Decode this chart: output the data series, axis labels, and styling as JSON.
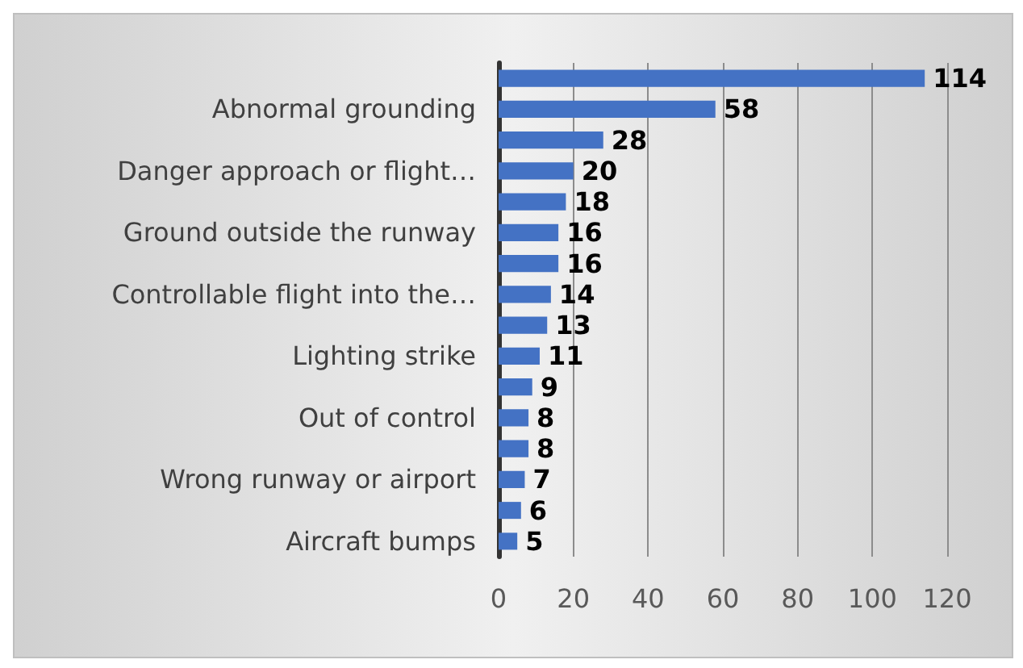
{
  "chart_data": {
    "type": "bar",
    "orientation": "horizontal",
    "categories": [
      null,
      "Abnormal grounding",
      null,
      "Danger approach or flight…",
      null,
      "Ground outside the runway",
      null,
      "Controllable flight into the…",
      null,
      "Lighting strike",
      null,
      "Out of control",
      null,
      "Wrong runway or airport",
      null,
      "Aircraft bumps"
    ],
    "values": [
      114,
      58,
      28,
      20,
      18,
      16,
      16,
      14,
      13,
      11,
      9,
      8,
      8,
      7,
      6,
      5
    ],
    "color": "#4472c4",
    "xlim": [
      0,
      120
    ],
    "xticks": [
      0,
      20,
      40,
      60,
      80,
      100,
      120
    ],
    "grid": "x",
    "data_labels": true
  }
}
